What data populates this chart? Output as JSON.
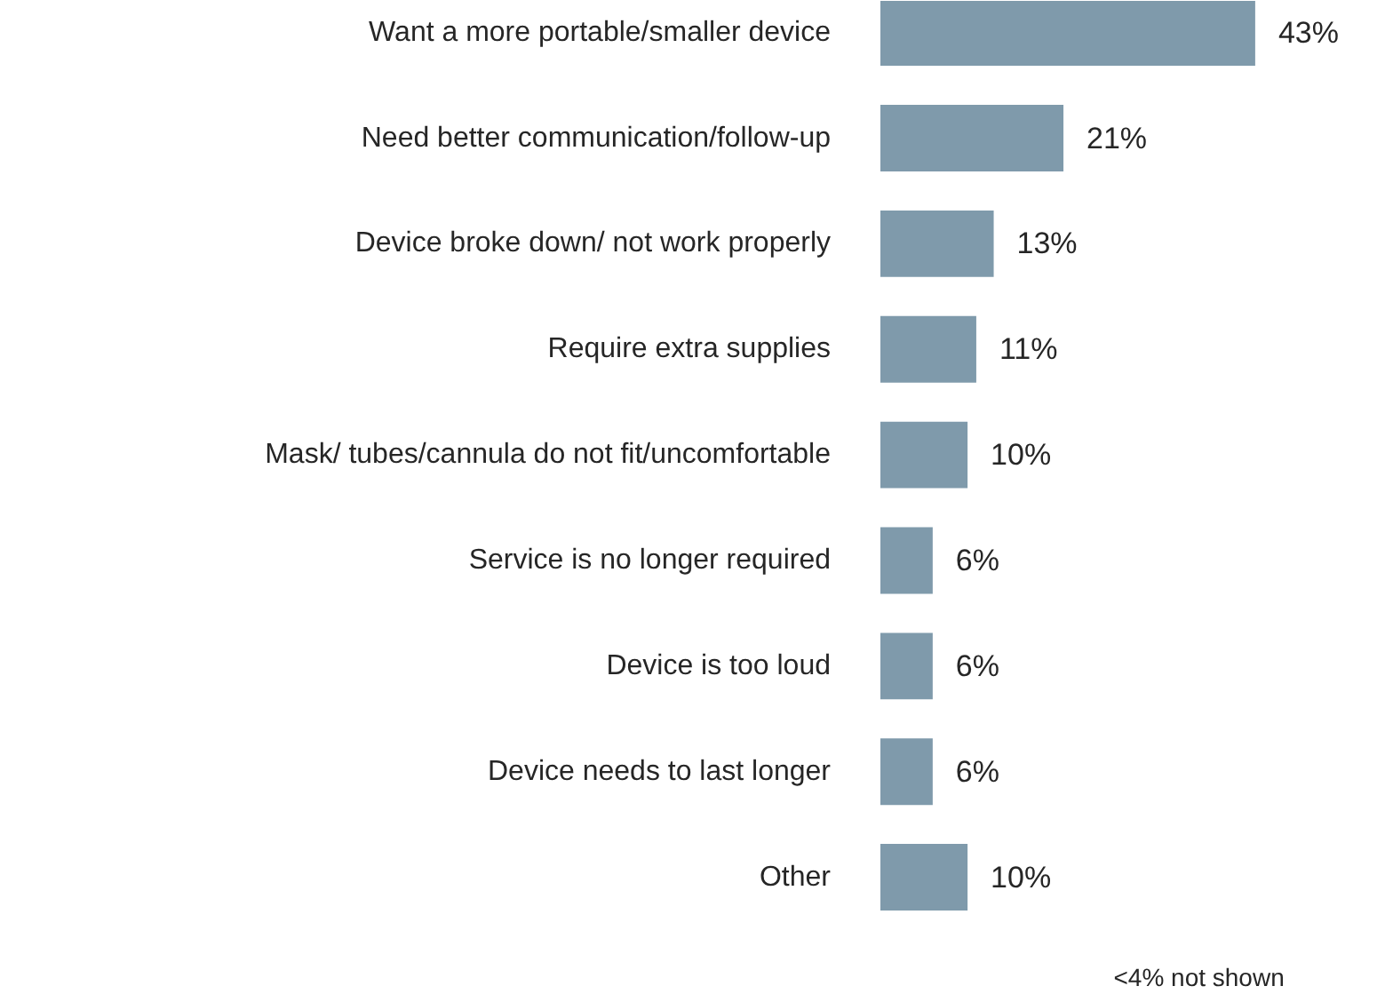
{
  "chart_data": {
    "type": "bar",
    "orientation": "horizontal",
    "categories": [
      "Want a more portable/smaller device",
      "Need better communication/follow-up",
      "Device broke down/ not work properly",
      "Require extra supplies",
      "Mask/ tubes/cannula do not fit/uncomfortable",
      "Service is no longer required",
      "Device is too loud",
      "Device needs to last longer",
      "Other"
    ],
    "values": [
      43,
      21,
      13,
      11,
      10,
      6,
      6,
      6,
      10
    ],
    "value_labels": [
      "43%",
      "21%",
      "13%",
      "11%",
      "10%",
      "6%",
      "6%",
      "6%",
      "10%"
    ],
    "color": "#7f9aab",
    "annotations": [
      "<4% not shown"
    ]
  }
}
